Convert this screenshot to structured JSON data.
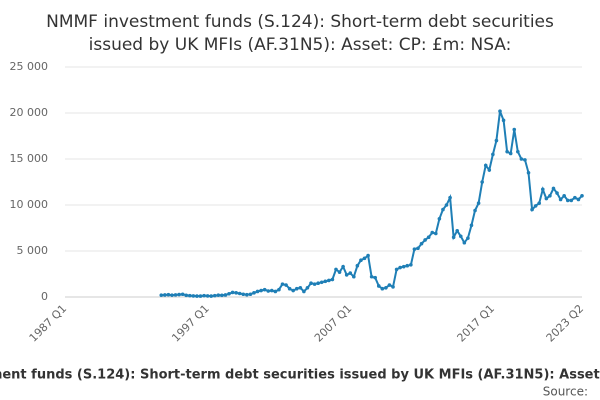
{
  "chart_data": {
    "type": "line",
    "title": "NMMF investment funds (S.124): Short-term debt securities issued by UK MFIs (AF.31N5): Asset: CP: £m: NSA:",
    "source_label": "Source:",
    "categories": [
      "1987 Q1",
      null,
      null,
      null,
      null,
      null,
      null,
      null,
      null,
      null,
      null,
      null,
      null,
      null,
      null,
      null,
      null,
      null,
      null,
      null,
      null,
      null,
      null,
      null,
      null,
      null,
      null,
      null,
      null,
      null,
      null,
      null,
      null,
      null,
      null,
      null,
      null,
      null,
      null,
      null,
      "1997 Q1",
      null,
      null,
      null,
      null,
      null,
      null,
      null,
      null,
      null,
      null,
      null,
      null,
      null,
      null,
      null,
      null,
      null,
      null,
      null,
      null,
      null,
      null,
      null,
      null,
      null,
      null,
      null,
      null,
      null,
      null,
      null,
      null,
      null,
      null,
      null,
      null,
      null,
      null,
      null,
      "2007 Q1",
      null,
      null,
      null,
      null,
      null,
      null,
      null,
      null,
      null,
      null,
      null,
      null,
      null,
      null,
      null,
      null,
      null,
      null,
      null,
      null,
      null,
      null,
      null,
      null,
      null,
      null,
      null,
      null,
      null,
      null,
      null,
      null,
      null,
      null,
      null,
      null,
      null,
      null,
      null,
      "2017 Q1",
      null,
      null,
      null,
      null,
      null,
      null,
      null,
      null,
      null,
      null,
      null,
      null,
      null,
      null,
      null,
      null,
      null,
      null,
      null,
      null,
      null,
      null,
      null,
      null,
      "2023 Q2"
    ],
    "values": [
      null,
      null,
      null,
      null,
      null,
      null,
      null,
      null,
      null,
      null,
      null,
      null,
      null,
      null,
      null,
      null,
      null,
      null,
      null,
      null,
      null,
      null,
      null,
      null,
      null,
      null,
      null,
      200,
      220,
      250,
      200,
      230,
      260,
      300,
      180,
      150,
      120,
      100,
      100,
      150,
      120,
      100,
      150,
      200,
      180,
      220,
      350,
      500,
      450,
      380,
      300,
      250,
      300,
      450,
      600,
      700,
      800,
      650,
      700,
      600,
      800,
      1400,
      1300,
      900,
      700,
      900,
      1000,
      600,
      1000,
      1500,
      1400,
      1500,
      1600,
      1700,
      1800,
      1900,
      3000,
      2700,
      3300,
      2400,
      2600,
      2200,
      3400,
      4000,
      4200,
      4500,
      2200,
      2100,
      1200,
      900,
      1000,
      1300,
      1100,
      3000,
      3200,
      3300,
      3400,
      3500,
      5200,
      5300,
      5800,
      6200,
      6500,
      7000,
      6900,
      8500,
      9500,
      10000,
      10800,
      6500,
      7200,
      6600,
      5900,
      6400,
      7800,
      9400,
      10200,
      12500,
      14300,
      13800,
      15500,
      17000,
      20200,
      19200,
      15800,
      15600,
      18200,
      15800,
      15000,
      14900,
      13500,
      9500,
      9900,
      10200,
      11700,
      10700,
      11000,
      11800,
      11300,
      10600,
      11000,
      10500,
      10500,
      10800,
      10600,
      11000
    ],
    "color": "#1f7fb6",
    "ylim": [
      0,
      25000
    ],
    "yticks": [
      0,
      {
        "value": 5000,
        "label": "5 000"
      },
      {
        "value": 10000,
        "label": "10 000"
      },
      {
        "value": 15000,
        "label": "15 000"
      },
      {
        "value": 20000,
        "label": "20 000"
      },
      {
        "value": 25000,
        "label": "25 000"
      }
    ],
    "grid": true
  }
}
